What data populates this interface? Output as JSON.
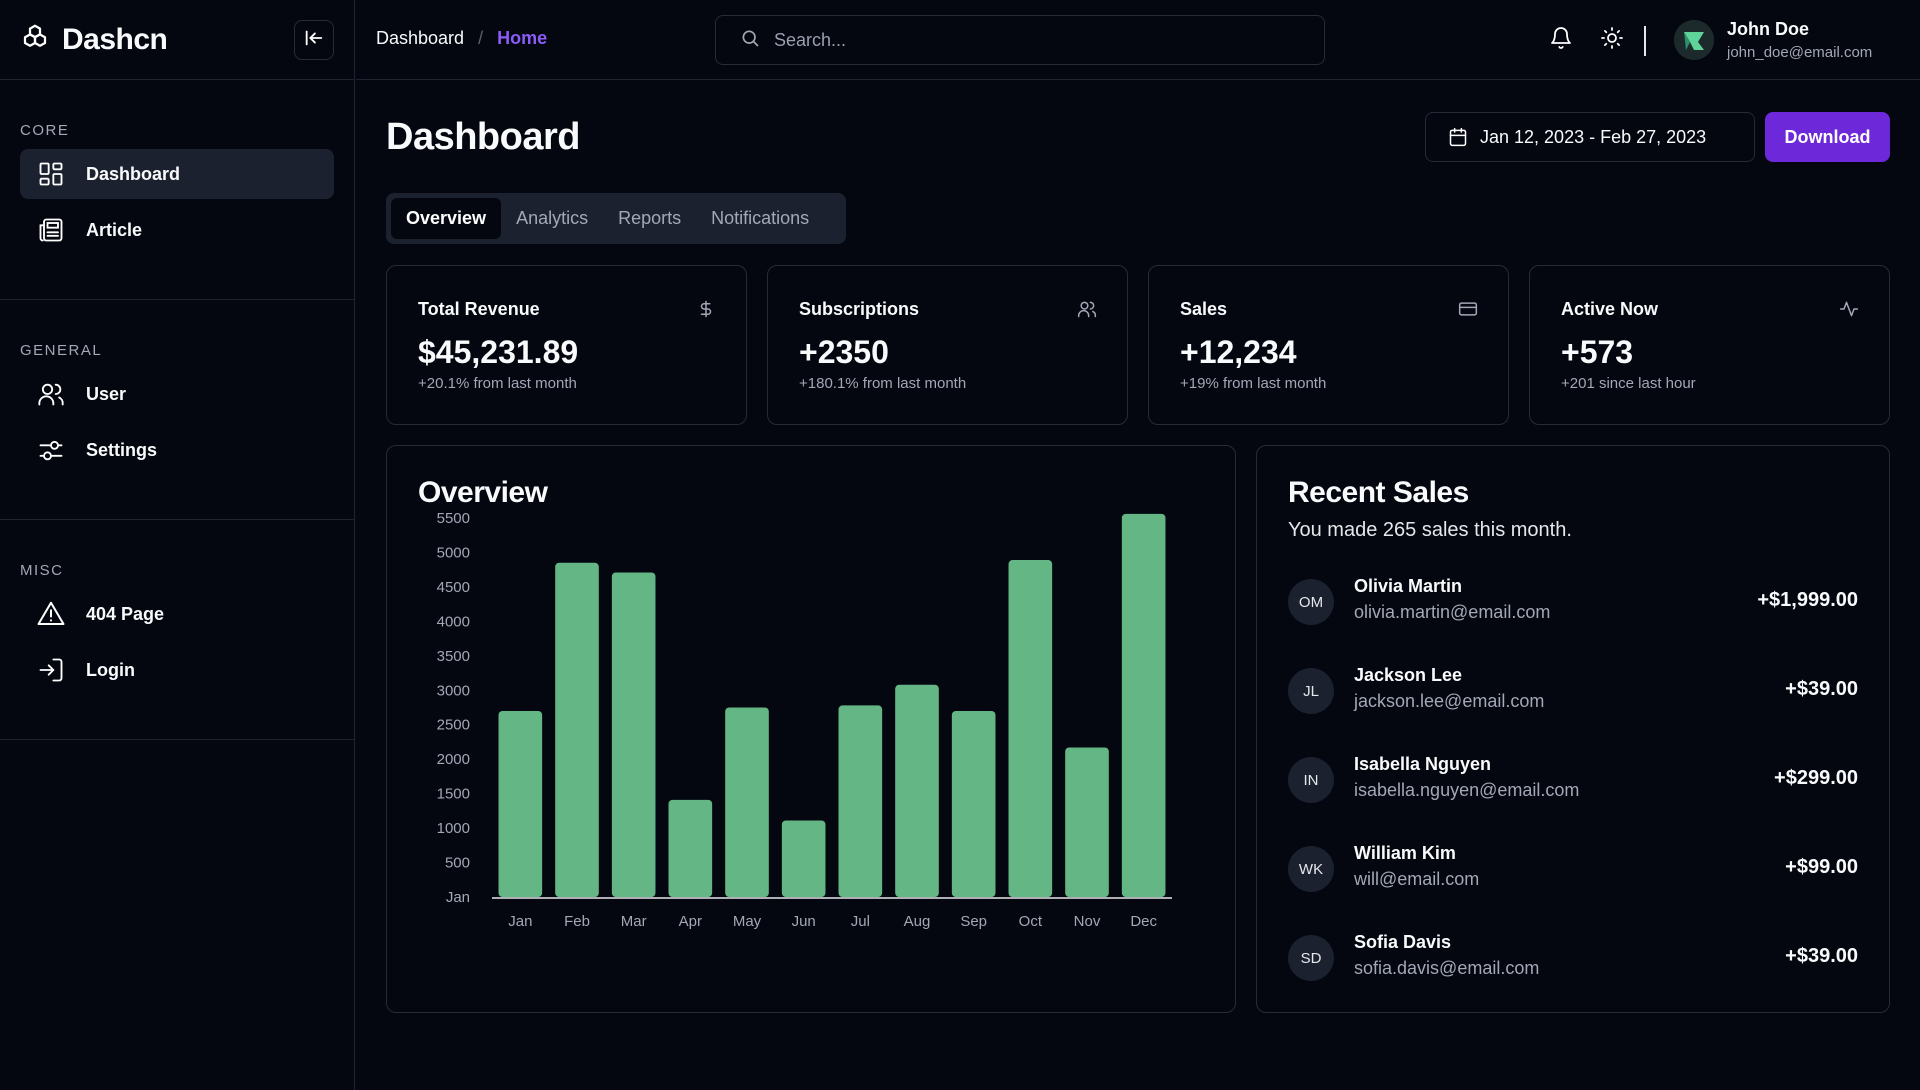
{
  "brand": {
    "name": "Dashcn",
    "logo_icon": "cube-logo-icon"
  },
  "sidebar": {
    "sections": [
      {
        "title": "CORE",
        "items": [
          {
            "label": "Dashboard",
            "icon": "dashboard-grid-icon",
            "active": true
          },
          {
            "label": "Article",
            "icon": "newspaper-icon",
            "active": false
          }
        ]
      },
      {
        "title": "GENERAL",
        "items": [
          {
            "label": "User",
            "icon": "users-icon",
            "active": false
          },
          {
            "label": "Settings",
            "icon": "sliders-icon",
            "active": false
          }
        ]
      },
      {
        "title": "MISC",
        "items": [
          {
            "label": "404 Page",
            "icon": "warning-triangle-icon",
            "active": false
          },
          {
            "label": "Login",
            "icon": "login-icon",
            "active": false
          }
        ]
      }
    ]
  },
  "header": {
    "breadcrumb": {
      "root": "Dashboard",
      "separator": "/",
      "current": "Home"
    },
    "search_placeholder": "Search...",
    "user": {
      "name": "John Doe",
      "email": "john_doe@email.com"
    }
  },
  "main": {
    "title": "Dashboard",
    "date_range": "Jan 12, 2023 - Feb 27, 2023",
    "download_label": "Download",
    "tabs": [
      {
        "label": "Overview",
        "active": true
      },
      {
        "label": "Analytics",
        "active": false
      },
      {
        "label": "Reports",
        "active": false
      },
      {
        "label": "Notifications",
        "active": false
      }
    ],
    "stats": [
      {
        "title": "Total Revenue",
        "value": "$45,231.89",
        "sub": "+20.1% from last month",
        "icon": "dollar-icon"
      },
      {
        "title": "Subscriptions",
        "value": "+2350",
        "sub": "+180.1% from last month",
        "icon": "users-icon"
      },
      {
        "title": "Sales",
        "value": "+12,234",
        "sub": "+19% from last month",
        "icon": "credit-card-icon"
      },
      {
        "title": "Active Now",
        "value": "+573",
        "sub": "+201 since last hour",
        "icon": "activity-icon"
      }
    ],
    "overview_title": "Overview",
    "recent_sales": {
      "title": "Recent Sales",
      "description": "You made 265 sales this month.",
      "items": [
        {
          "initials": "OM",
          "name": "Olivia Martin",
          "email": "olivia.martin@email.com",
          "amount": "+$1,999.00"
        },
        {
          "initials": "JL",
          "name": "Jackson Lee",
          "email": "jackson.lee@email.com",
          "amount": "+$39.00"
        },
        {
          "initials": "IN",
          "name": "Isabella Nguyen",
          "email": "isabella.nguyen@email.com",
          "amount": "+$299.00"
        },
        {
          "initials": "WK",
          "name": "William Kim",
          "email": "will@email.com",
          "amount": "+$99.00"
        },
        {
          "initials": "SD",
          "name": "Sofia Davis",
          "email": "sofia.davis@email.com",
          "amount": "+$39.00"
        }
      ]
    }
  },
  "colors": {
    "accent": "#6d28d9",
    "breadcrumb_current": "#8b5cf6",
    "bar": "#65b685",
    "background": "#040610"
  },
  "chart_data": {
    "type": "bar",
    "title": "Overview",
    "categories": [
      "Jan",
      "Feb",
      "Mar",
      "Apr",
      "May",
      "Jun",
      "Jul",
      "Aug",
      "Sep",
      "Oct",
      "Nov",
      "Dec"
    ],
    "values": [
      2700,
      4850,
      4710,
      1410,
      2750,
      1110,
      2780,
      3080,
      2700,
      4890,
      2170,
      5560
    ],
    "y_ticks": [
      "Jan",
      "500",
      "1000",
      "1500",
      "2000",
      "2500",
      "3000",
      "3500",
      "4000",
      "4500",
      "5000",
      "5500"
    ],
    "ylim": [
      0,
      5500
    ],
    "xlabel": "",
    "ylabel": "",
    "grid": false,
    "legend": "none"
  }
}
